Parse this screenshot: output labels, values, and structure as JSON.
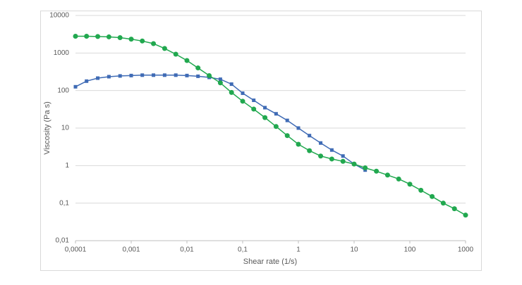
{
  "chart_data": {
    "type": "line",
    "x_label": "Shear rate (1/s)",
    "y_label": "Viscosity (Pa s)",
    "xscale": "log",
    "yscale": "log",
    "grid": true,
    "xlim": [
      0.0001,
      1000
    ],
    "ylim": [
      0.01,
      10000
    ],
    "xticks": [
      {
        "value": 0.0001,
        "label": "0,0001"
      },
      {
        "value": 0.001,
        "label": "0,001"
      },
      {
        "value": 0.01,
        "label": "0,01"
      },
      {
        "value": 0.1,
        "label": "0,1"
      },
      1,
      10,
      100,
      1000
    ],
    "yticks": [
      {
        "value": 0.01,
        "label": "0,01"
      },
      {
        "value": 0.1,
        "label": "0,1"
      },
      1,
      10,
      100,
      1000,
      10000
    ],
    "series": [
      {
        "color": "#3f6bb5",
        "marker": "square",
        "x": [
          0.0001,
          0.000158,
          0.000251,
          0.000398,
          0.000631,
          0.001,
          0.00158,
          0.00251,
          0.00398,
          0.00631,
          0.01,
          0.0158,
          0.0251,
          0.0398,
          0.0631,
          0.1,
          0.158,
          0.251,
          0.398,
          0.631,
          1,
          1.58,
          2.51,
          3.98,
          6.31,
          10,
          15.8
        ],
        "values": [
          126,
          178,
          214,
          234,
          245,
          251,
          257,
          257,
          257,
          257,
          251,
          240,
          224,
          200,
          148,
          85,
          55,
          35,
          24,
          16,
          10,
          6.3,
          4.0,
          2.6,
          1.8,
          1.1,
          0.76
        ]
      },
      {
        "color": "#21a84f",
        "marker": "circle",
        "x": [
          0.0001,
          0.000158,
          0.000251,
          0.000398,
          0.000631,
          0.001,
          0.00158,
          0.00251,
          0.00398,
          0.00631,
          0.01,
          0.0158,
          0.0251,
          0.0398,
          0.0631,
          0.1,
          0.158,
          0.251,
          0.398,
          0.631,
          1,
          1.58,
          2.51,
          3.98,
          6.31,
          10,
          15.8,
          25.1,
          39.8,
          63.1,
          100,
          158,
          251,
          398,
          631,
          1000
        ],
        "values": [
          2800,
          2800,
          2750,
          2690,
          2570,
          2340,
          2090,
          1780,
          1320,
          930,
          630,
          400,
          250,
          160,
          89,
          52,
          32,
          19,
          11,
          6.3,
          3.7,
          2.5,
          1.8,
          1.5,
          1.3,
          1.1,
          0.87,
          0.71,
          0.56,
          0.44,
          0.32,
          0.22,
          0.15,
          0.1,
          0.071,
          0.048
        ]
      }
    ]
  }
}
